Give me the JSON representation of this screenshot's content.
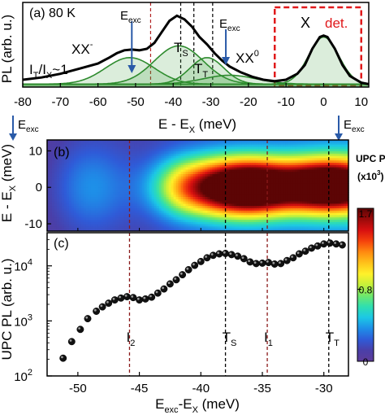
{
  "chart_data": [
    {
      "panel": "a",
      "type": "line",
      "panel_label": "(a)",
      "temperature": "80 K",
      "ylabel": "PL (arb. u.)",
      "xlabel": "E - E",
      "xlabel_sub": "X",
      "xlabel_unit": " (meV)",
      "xlim": [
        -80,
        12
      ],
      "ylim": [
        0,
        1.15
      ],
      "xticks": [
        -80,
        -70,
        -60,
        -50,
        -40,
        -30,
        -20,
        -10,
        0,
        10
      ],
      "annotations": {
        "xx_minus": "XX",
        "xx_minus_sup": "-",
        "xx0": "XX",
        "xx0_sup": "0",
        "ts": "T",
        "ts_sub": "S",
        "tt": "T",
        "tt_sub": "T",
        "x": "X",
        "det": "det.",
        "ratio_a": "I",
        "ratio_a_sub": "T",
        "ratio_b": "/I",
        "ratio_b_sub": "X",
        "ratio_c": "~1",
        "eexc": "E",
        "eexc_sub": "exc"
      },
      "excitation_arrows_x": [
        -51,
        -26
      ],
      "dashed_lines_x": [
        -46,
        -38,
        -34.5,
        -29.5
      ],
      "detection_window": [
        -13,
        10
      ],
      "components": [
        {
          "name": "XX-",
          "center": -51.5,
          "amplitude": 0.36,
          "width": 6.5
        },
        {
          "name": "TS",
          "center": -38.5,
          "amplitude": 0.52,
          "width": 6.5
        },
        {
          "name": "TT",
          "center": -31,
          "amplitude": 0.36,
          "width": 4.5
        },
        {
          "name": "XX0",
          "center": -25,
          "amplitude": 0.12,
          "width": 7
        },
        {
          "name": "X",
          "center": 0,
          "amplitude": 0.64,
          "width": 4
        }
      ],
      "total_curve": {
        "x": [
          -80,
          -75,
          -70,
          -65,
          -60,
          -57,
          -55,
          -53,
          -51,
          -49,
          -47,
          -45,
          -43,
          -41,
          -39,
          -37,
          -35,
          -33,
          -31,
          -29,
          -27,
          -25,
          -22,
          -19,
          -16,
          -13,
          -10,
          -7,
          -5,
          -3,
          -1,
          0,
          1,
          3,
          5,
          7,
          10,
          12
        ],
        "y": [
          0.1,
          0.13,
          0.18,
          0.25,
          0.32,
          0.4,
          0.46,
          0.5,
          0.51,
          0.5,
          0.52,
          0.6,
          0.75,
          0.9,
          0.97,
          0.92,
          0.82,
          0.68,
          0.58,
          0.46,
          0.36,
          0.28,
          0.2,
          0.14,
          0.1,
          0.08,
          0.1,
          0.18,
          0.3,
          0.52,
          0.68,
          0.7,
          0.68,
          0.52,
          0.3,
          0.15,
          0.06,
          0.04
        ]
      }
    },
    {
      "panel": "b",
      "type": "heatmap",
      "panel_label": "(b)",
      "ylabel": "E - E",
      "ylabel_sub": "X",
      "ylabel_unit": " (meV)",
      "xlim": [
        -52.5,
        -28
      ],
      "ylim": [
        -12,
        13
      ],
      "yticks": [
        10,
        0,
        -10
      ],
      "colorbar": {
        "title": "UPC PL",
        "scale_label": "(x10",
        "scale_sup": "3",
        "scale_close": ")",
        "ticks": [
          1.7,
          0.8,
          0
        ],
        "min": 0,
        "max": 1.7,
        "colors": [
          "#5e3c99",
          "#4a3fa8",
          "#2f5bd8",
          "#1e8fe8",
          "#1cc7e6",
          "#2fdfb0",
          "#6fe86b",
          "#c6f03a",
          "#fff12a",
          "#ffc21a",
          "#ff8a10",
          "#f5420c",
          "#d81010",
          "#9a0a0a",
          "#5c0505"
        ]
      },
      "blobs": [
        {
          "x": -38,
          "y": 0,
          "amplitude": 1.25,
          "sx": 3.2,
          "sy": 5.5
        },
        {
          "x": -35.5,
          "y": 0,
          "amplitude": 0.7,
          "sx": 2.0,
          "sy": 5.0
        },
        {
          "x": -29.5,
          "y": 0.5,
          "amplitude": 1.7,
          "sx": 3.0,
          "sy": 5.0
        }
      ]
    },
    {
      "panel": "c",
      "type": "scatter",
      "panel_label": "(c)",
      "ylabel": "UPC PL (arb. u.)",
      "xlabel": "E",
      "xlabel_sub1": "exc",
      "xlabel_mid": "-E",
      "xlabel_sub2": "X",
      "xlabel_unit": " (meV)",
      "yscale": "log",
      "xlim": [
        -52.5,
        -28
      ],
      "ylim": [
        100,
        40000
      ],
      "xticks": [
        -50,
        -45,
        -40,
        -35,
        -30
      ],
      "yticks": [
        {
          "value": 100,
          "base": "10",
          "exp": "2"
        },
        {
          "value": 1000,
          "base": "10",
          "exp": "3"
        },
        {
          "value": 10000,
          "base": "10",
          "exp": "4"
        }
      ],
      "dashed_lines": [
        {
          "x": -45.8,
          "label": "I",
          "sub": "2",
          "color": "#8b1a1a"
        },
        {
          "x": -38.0,
          "label": "T",
          "sub": "S",
          "color": "#000000"
        },
        {
          "x": -34.6,
          "label": "I",
          "sub": "1",
          "color": "#8b1a1a"
        },
        {
          "x": -29.6,
          "label": "T",
          "sub": "T",
          "color": "#000000"
        }
      ],
      "x": [
        -51.2,
        -50.5,
        -49.8,
        -49.2,
        -48.5,
        -48.0,
        -47.5,
        -47.0,
        -46.5,
        -46.0,
        -45.5,
        -45.0,
        -44.5,
        -44.0,
        -43.5,
        -43.0,
        -42.5,
        -42.0,
        -41.5,
        -41.0,
        -40.5,
        -40.0,
        -39.5,
        -39.0,
        -38.5,
        -38.0,
        -37.5,
        -37.0,
        -36.5,
        -36.0,
        -35.5,
        -35.0,
        -34.5,
        -34.0,
        -33.5,
        -33.0,
        -32.5,
        -32.0,
        -31.5,
        -31.0,
        -30.5,
        -30.0,
        -29.5,
        -29.0,
        -28.5
      ],
      "y": [
        210,
        420,
        700,
        1100,
        1500,
        1800,
        2100,
        2400,
        2600,
        2750,
        2650,
        2400,
        2500,
        2700,
        3200,
        3800,
        4700,
        5600,
        6900,
        8500,
        10200,
        12000,
        14000,
        15500,
        16500,
        16800,
        16000,
        15000,
        13500,
        11800,
        11000,
        11200,
        11500,
        10800,
        11000,
        12500,
        14000,
        16500,
        18500,
        21000,
        23000,
        25000,
        26000,
        25000,
        24000
      ]
    }
  ],
  "external_labels": {
    "eexc": "E",
    "eexc_sub": "exc"
  }
}
